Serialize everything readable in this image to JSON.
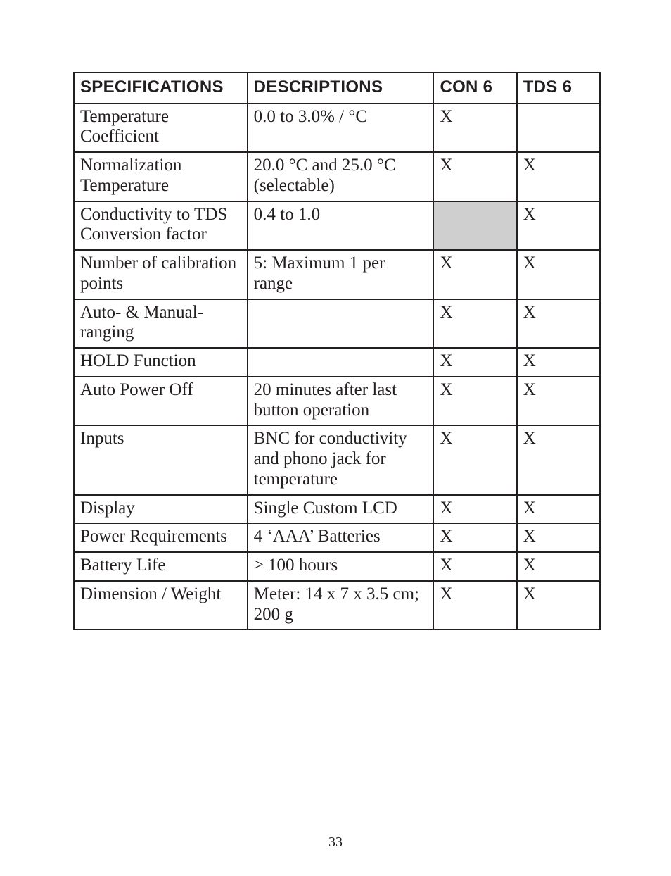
{
  "page_number": "33",
  "table": {
    "headers": {
      "spec": "SPECIFICATIONS",
      "desc": "DESCRIPTIONS",
      "con": "CON 6",
      "tds": "TDS 6"
    },
    "rows": [
      {
        "spec": "Temperature Coefficient",
        "desc": "0.0 to 3.0% / °C",
        "con": "X",
        "tds": "",
        "shaded_con": false,
        "pad": false
      },
      {
        "spec": "Normalization Temperature",
        "desc": "20.0 °C and 25.0 °C (selectable)",
        "con": "X",
        "tds": "X",
        "shaded_con": false,
        "pad": true
      },
      {
        "spec": "Conductivity to TDS Conversion factor",
        "desc": "0.4 to 1.0",
        "con": "",
        "tds": "X",
        "shaded_con": true,
        "pad": false
      },
      {
        "spec": "Number of calibration points",
        "desc": "5: Maximum 1 per range",
        "con": "X",
        "tds": "X",
        "shaded_con": false,
        "pad": false
      },
      {
        "spec": "Auto- & Manual-ranging",
        "desc": "",
        "con": "X",
        "tds": "X",
        "shaded_con": false,
        "pad": false
      },
      {
        "spec": "HOLD Function",
        "desc": "",
        "con": "X",
        "tds": "X",
        "shaded_con": false,
        "pad": false
      },
      {
        "spec": "Auto Power Off",
        "desc": "20 minutes after last button operation",
        "con": "X",
        "tds": "X",
        "shaded_con": false,
        "pad": false
      },
      {
        "spec": "Inputs",
        "desc": "BNC for conductivity and phono jack for temperature",
        "con": "X",
        "tds": "X",
        "shaded_con": false,
        "pad": false
      },
      {
        "spec": "Display",
        "desc": "Single Custom LCD",
        "con": "X",
        "tds": "X",
        "shaded_con": false,
        "pad": false
      },
      {
        "spec": "Power Requirements",
        "desc": "4 ‘AAA’ Batteries",
        "con": "X",
        "tds": "X",
        "shaded_con": false,
        "pad": false
      },
      {
        "spec": "Battery Life",
        "desc": "> 100 hours",
        "con": "X",
        "tds": "X",
        "shaded_con": false,
        "pad": false
      },
      {
        "spec": "Dimension / Weight",
        "desc": "Meter: 14 x 7 x 3.5 cm; 200 g",
        "con": "X",
        "tds": "X",
        "shaded_con": false,
        "pad": false
      }
    ]
  }
}
